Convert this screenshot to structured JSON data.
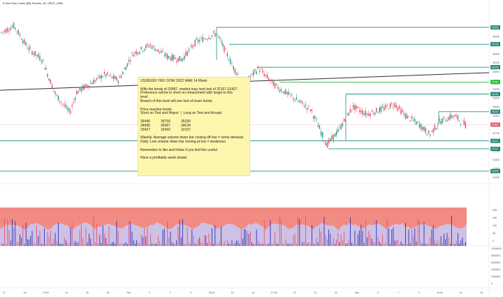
{
  "symbol_header": "E-mini Dow Jones ($5) Futures, 60, CBOT_MINI",
  "chart_data": {
    "type": "candlestick",
    "ylim": [
      31000,
      36900
    ],
    "price_axis_ticks": [
      "36300",
      "36000",
      "35700",
      "35400",
      "35100",
      "34800",
      "34500",
      "34200",
      "33900",
      "33600",
      "33300",
      "33000",
      "32700",
      "32400",
      "32100",
      "31800",
      "31500",
      "31200"
    ],
    "price_tags": [
      {
        "label": "36300",
        "value": 36300,
        "color": "#22887a"
      },
      {
        "label": "35728",
        "value": 35728,
        "color": "#22887a"
      },
      {
        "label": "34945",
        "value": 34945,
        "color": "#22887a"
      },
      {
        "label": "34440",
        "value": 34440,
        "color": "#1fbf2c"
      },
      {
        "label": "34030",
        "value": 34030,
        "color": "#22887a"
      },
      {
        "label": "33430",
        "value": 33430,
        "color": "#22887a"
      },
      {
        "label": "32989",
        "value": 32989,
        "color": "#e05a6a"
      },
      {
        "label": "32437",
        "value": 32437,
        "color": "#22887a"
      },
      {
        "label": "32167",
        "value": 32167,
        "color": "#22887a"
      },
      {
        "label": "31406",
        "value": 31406,
        "color": "#22887a"
      }
    ],
    "volume_axis_ticks": [
      "20K",
      "15K",
      "10K",
      "5K",
      "0"
    ],
    "oscillator_axis_ticks": [
      "10000000",
      "8000000",
      "6000000",
      "4000000",
      "2000000",
      "0"
    ],
    "time_axis_labels": [
      "17",
      "18",
      "19:00",
      "24",
      "25",
      "28",
      "Feb",
      "3",
      "7",
      "9",
      "15:00",
      "15",
      "16",
      "17:00",
      "21",
      "22",
      "23",
      "Mar",
      "3",
      "7",
      "9",
      "10:00",
      "14",
      "15"
    ],
    "colors": {
      "up": "#2a8f86",
      "down": "#e8495c",
      "level": "#1f8f7a",
      "trend": "#2b2b3a",
      "volume_bg": "#f28b82",
      "volume_band": "#c9c7f0"
    }
  },
  "note": {
    "title": "US30USD YM1! DOW 2022 MAR 14 Week",
    "para1": "With the break of 33087, market may next test of 32167-32427.\nPreference will be to short on retracement with target to this\nlevel.\nBreach of this level will see test of lower levels.",
    "reaction_title": "Price reaction levels",
    "reaction_sub": "Short on Test and Reject  |  Long on Test and Accept",
    "levels": [
      [
        "36446",
        "35750",
        "35330"
      ],
      [
        "34968",
        "34367",
        "34034"
      ],
      [
        "33427",
        "32492",
        "32167"
      ]
    ],
    "weekly": "Weekly: Average volume down bar closing off low = some demand.",
    "daily": "Daily: Low volume down bar closing at low = weakness",
    "remember": "Remember to like and follow if you find this useful.",
    "sign_off": "Have a profitable week ahead"
  }
}
